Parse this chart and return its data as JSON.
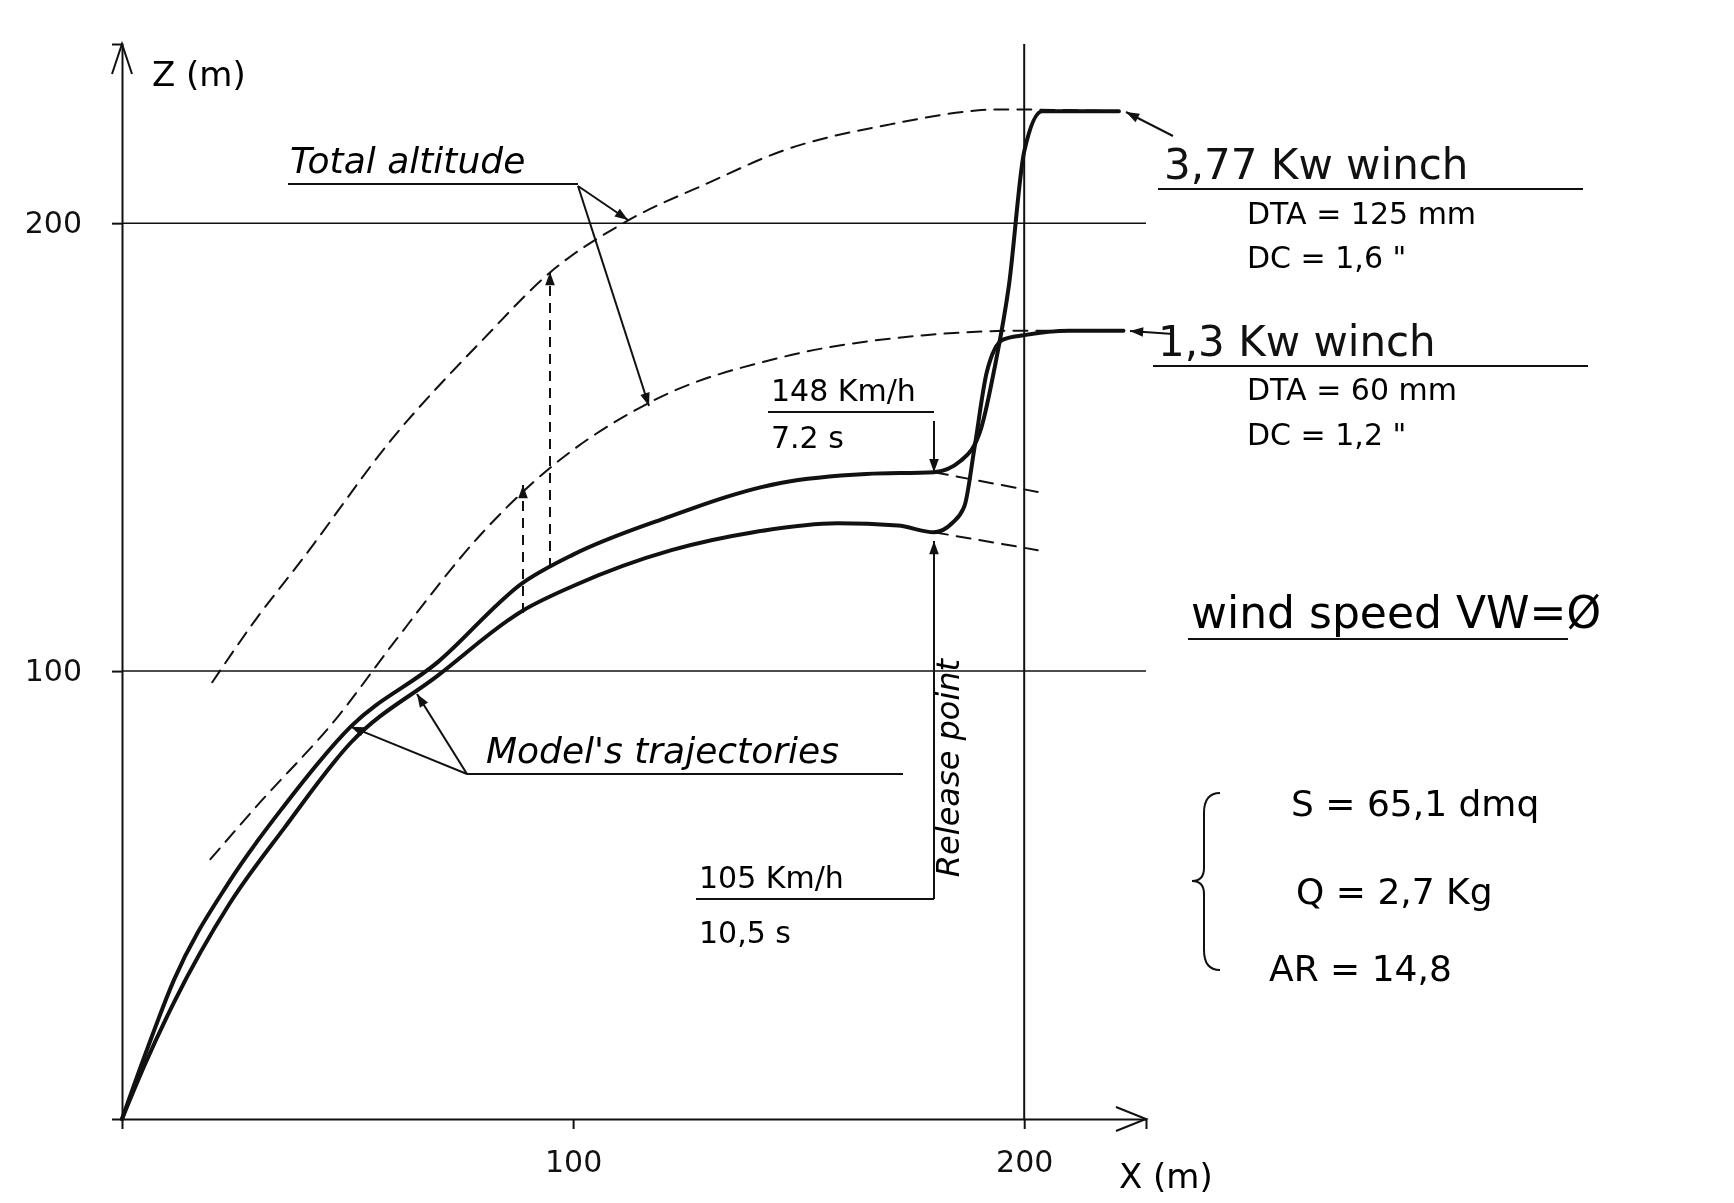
{
  "chart_data": {
    "type": "line",
    "xlabel": "X (m)",
    "ylabel": "Z (m)",
    "xlim": [
      0,
      227
    ],
    "ylim": [
      0,
      240
    ],
    "xticks": [
      100,
      200
    ],
    "yticks": [
      100,
      200
    ],
    "grid": false,
    "legend": "right",
    "marker": "none",
    "series": [
      {
        "name": "3,77 Kw winch",
        "color": "#111111",
        "line_style": "solid",
        "x": [
          0,
          5,
          11.5,
          23.8,
          36,
          50.7,
          70,
          89,
          100,
          120,
          146,
          165,
          180,
          186,
          190.4,
          193.5,
          196.6,
          200,
          204,
          210,
          221
        ],
        "values": [
          0,
          14,
          31,
          53,
          70,
          87.6,
          102,
          119.8,
          126,
          134,
          142,
          144,
          144.4,
          147,
          154,
          168,
          186,
          216,
          225,
          225,
          225
        ]
      },
      {
        "name": "1,3 Kw winch",
        "color": "#111111",
        "line_style": "solid",
        "x": [
          0,
          5,
          11.5,
          23.8,
          36,
          50.7,
          70,
          89,
          100,
          121.8,
          140,
          158.6,
          172,
          180,
          184,
          186.8,
          189,
          191.7,
          195.3,
          200,
          210,
          222
        ],
        "values": [
          0,
          12,
          26,
          48,
          65,
          84,
          99,
          113.6,
          119,
          127,
          131,
          133,
          132.5,
          131,
          133,
          137,
          150,
          166.7,
          174,
          175,
          176,
          176
        ]
      },
      {
        "color": "#111111",
        "line_style": "dashed",
        "x": [
          20,
          30,
          40,
          60,
          80,
          94.9,
          112,
          130,
          146,
          170,
          195,
          220
        ],
        "values": [
          97.5,
          112,
          125,
          152,
          174,
          189,
          200.5,
          209,
          216,
          222,
          225.4,
          225
        ]
      },
      {
        "color": "#111111",
        "line_style": "dashed",
        "x": [
          19.6,
          30,
          48,
          60,
          80,
          91,
          118,
          146,
          178,
          200,
          220
        ],
        "values": [
          58,
          70,
          90,
          106,
          131,
          142,
          160.5,
          170,
          175,
          176,
          176
        ]
      },
      {
        "color": "#111111",
        "line_style": "dashed",
        "x": [
          180,
          203
        ],
        "values": [
          144.4,
          140
        ]
      },
      {
        "color": "#111111",
        "line_style": "dashed",
        "x": [
          180,
          203
        ],
        "values": [
          131,
          127
        ]
      }
    ],
    "ref_lines": [
      {
        "axis": "x",
        "value": 200,
        "color": "#111111"
      },
      {
        "axis": "y",
        "value": 100,
        "color": "#111111"
      },
      {
        "axis": "y",
        "value": 200,
        "color": "#111111"
      }
    ],
    "annotations": [
      "Total altitude",
      {
        "text": "Model's trajectories",
        "x": 50.7,
        "y": 87.6
      },
      {
        "text": "148 Km/h",
        "x": 180,
        "y": 144.4
      },
      "7.2 s",
      "105 Km/h",
      "10,5 s",
      "Release point",
      "DTA = 125 mm",
      "DC = 1,6 \"",
      "DTA = 60 mm",
      "DC = 1,2 \"",
      "wind speed VW=Ø",
      "S = 65,1 dmq",
      "Q = 2,7 Kg",
      "AR = 14,8"
    ]
  }
}
